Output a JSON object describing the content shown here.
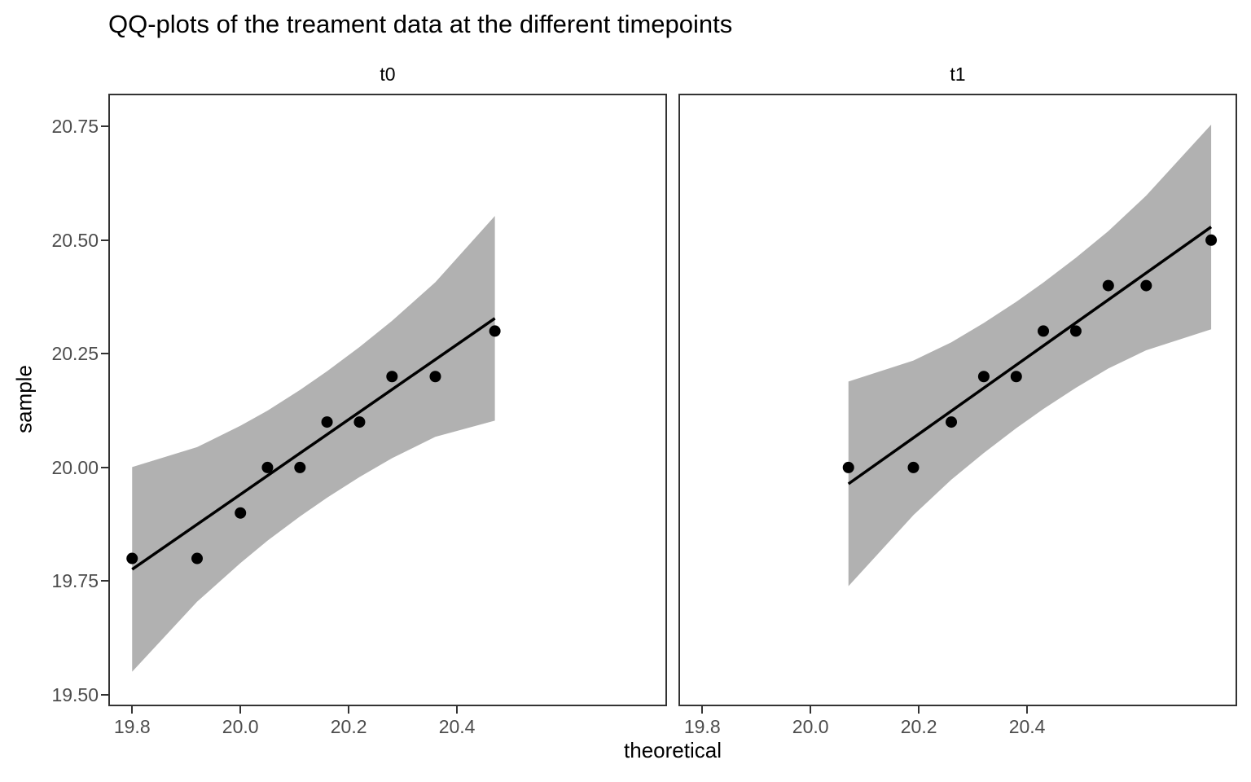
{
  "chart_data": {
    "type": "scatter",
    "subtype": "qq-plot-faceted",
    "title": "QQ-plots of the treament data at the different timepoints",
    "xlabel": "theoretical",
    "ylabel": "sample",
    "x_domain": [
      19.756,
      20.788
    ],
    "y_domain": [
      19.475,
      20.822
    ],
    "x_ticks": [
      "19.8",
      "20.0",
      "20.2",
      "20.4"
    ],
    "y_ticks": [
      "19.50",
      "19.75",
      "20.00",
      "20.25",
      "20.50",
      "20.75"
    ],
    "grid": "off",
    "legend": "none",
    "facets": [
      {
        "label": "t0",
        "theoretical": [
          19.8,
          19.92,
          20.0,
          20.05,
          20.11,
          20.16,
          20.22,
          20.28,
          20.36,
          20.47
        ],
        "sample": [
          19.8,
          19.8,
          19.9,
          20.0,
          20.0,
          20.1,
          20.1,
          20.2,
          20.2,
          20.3
        ],
        "qq_line": {
          "x1": 19.8,
          "y1": 19.776,
          "x2": 20.47,
          "y2": 20.328
        },
        "band_halfwidth": [
          0.225,
          0.17,
          0.151,
          0.143,
          0.139,
          0.139,
          0.143,
          0.151,
          0.17,
          0.225
        ]
      },
      {
        "label": "t1",
        "theoretical": [
          20.07,
          20.19,
          20.26,
          20.32,
          20.38,
          20.43,
          20.49,
          20.55,
          20.62,
          20.74
        ],
        "sample": [
          20.0,
          20.0,
          20.1,
          20.2,
          20.2,
          20.3,
          20.3,
          20.4,
          20.4,
          20.5
        ],
        "qq_line": {
          "x1": 20.07,
          "y1": 19.964,
          "x2": 20.74,
          "y2": 20.529
        },
        "band_halfwidth": [
          0.225,
          0.17,
          0.151,
          0.143,
          0.139,
          0.139,
          0.143,
          0.151,
          0.17,
          0.225
        ]
      }
    ],
    "colors": {
      "band": "#b1b1b1",
      "line": "#000000",
      "point": "#000000",
      "panel_border": "#333333",
      "tick_label": "#4d4d4d",
      "background": "#ffffff"
    }
  }
}
